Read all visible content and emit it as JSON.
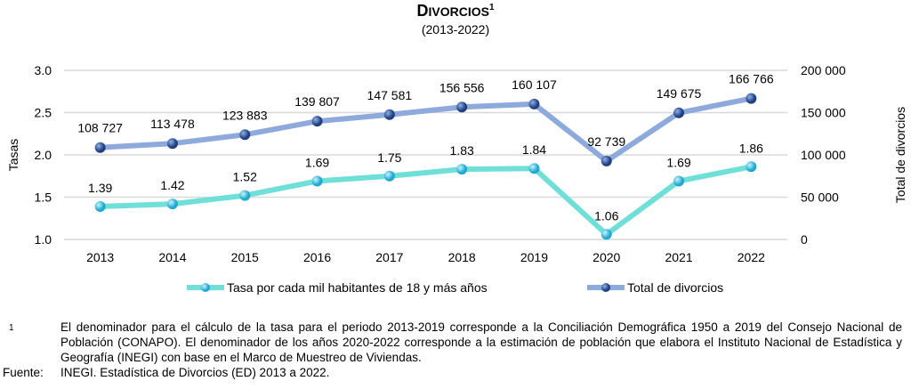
{
  "chart_data": {
    "type": "line",
    "title": "Divorcios",
    "title_footnote_marker": "1",
    "subtitle": "(2013-2022)",
    "categories": [
      "2013",
      "2014",
      "2015",
      "2016",
      "2017",
      "2018",
      "2019",
      "2020",
      "2021",
      "2022"
    ],
    "y_left": {
      "label": "Tasas",
      "ylim": [
        1.0,
        3.0
      ],
      "ticks": [
        "1.0",
        "1.5",
        "2.0",
        "2.5",
        "3.0"
      ]
    },
    "y_right": {
      "label": "Total de divorcios",
      "ylim": [
        0,
        200000
      ],
      "ticks": [
        "0",
        "50 000",
        "100 000",
        "150 000",
        "200 000"
      ]
    },
    "grid": true,
    "legend_position": "bottom",
    "series": [
      {
        "name": "Tasa por cada mil habitantes de 18 y más años",
        "axis": "left",
        "color": "#6fdfd8",
        "marker": "#29b6d8",
        "values": [
          1.39,
          1.42,
          1.52,
          1.69,
          1.75,
          1.83,
          1.84,
          1.06,
          1.69,
          1.86
        ],
        "labels": [
          "1.39",
          "1.42",
          "1.52",
          "1.69",
          "1.75",
          "1.83",
          "1.84",
          "1.06",
          "1.69",
          "1.86"
        ]
      },
      {
        "name": "Total de divorcios",
        "axis": "right",
        "color": "#8ea9db",
        "marker": "#2f5597",
        "values": [
          108727,
          113478,
          123883,
          139807,
          147581,
          156556,
          160107,
          92739,
          149675,
          166766
        ],
        "labels": [
          "108 727",
          "113 478",
          "123 883",
          "139 807",
          "147 581",
          "156 556",
          "160 107",
          "92 739",
          "149 675",
          "166 766"
        ]
      }
    ]
  },
  "footnote": {
    "marker": "1",
    "text": "El denominador para el cálculo de la tasa para el periodo 2013-2019 corresponde a la Conciliación Demográfica 1950 a 2019 del Consejo Nacional de Población (CONAPO). El denominador de los años 2020-2022 corresponde a la estimación de población que elabora el Instituto Nacional de Estadística y Geografía (INEGI) con base en el Marco de Muestreo de Viviendas."
  },
  "source": {
    "label": "Fuente:",
    "text": "INEGI. Estadística de Divorcios (ED) 2013 a 2022."
  }
}
